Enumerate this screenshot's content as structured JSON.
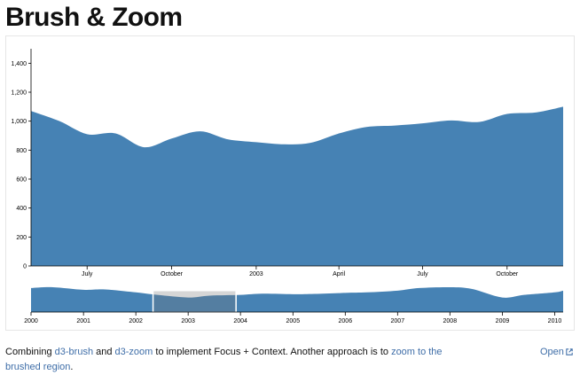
{
  "page": {
    "title": "Brush & Zoom"
  },
  "chart_data": [
    {
      "type": "area",
      "name": "focus",
      "color": "#4682b4",
      "ylim": [
        0,
        1500
      ],
      "y_ticks": [
        0,
        200,
        400,
        600,
        800,
        1000,
        1200,
        1400
      ],
      "y_tick_labels": [
        "0",
        "200",
        "400",
        "600",
        "800",
        "1,000",
        "1,200",
        "1,400"
      ],
      "x_range": [
        "2002-05-01",
        "2003-12-01"
      ],
      "x_ticks": [
        {
          "x": "2002-07-01",
          "label": "July"
        },
        {
          "x": "2002-10-01",
          "label": "October"
        },
        {
          "x": "2003-01-01",
          "label": "2003"
        },
        {
          "x": "2003-04-01",
          "label": "April"
        },
        {
          "x": "2003-07-01",
          "label": "July"
        },
        {
          "x": "2003-10-01",
          "label": "October"
        }
      ],
      "x": [
        "2002-05-01",
        "2002-06-01",
        "2002-07-01",
        "2002-08-01",
        "2002-09-01",
        "2002-10-01",
        "2002-11-01",
        "2002-12-01",
        "2003-01-01",
        "2003-02-01",
        "2003-03-01",
        "2003-04-01",
        "2003-05-01",
        "2003-06-01",
        "2003-07-01",
        "2003-08-01",
        "2003-09-01",
        "2003-10-01",
        "2003-11-01",
        "2003-12-01"
      ],
      "y": [
        1070,
        1000,
        910,
        915,
        820,
        880,
        930,
        875,
        855,
        840,
        850,
        915,
        960,
        970,
        985,
        1005,
        995,
        1050,
        1060,
        1100
      ]
    },
    {
      "type": "area",
      "name": "context",
      "color": "#4682b4",
      "x_range": [
        "2000-01-01",
        "2010-03-01"
      ],
      "x_ticks": [
        {
          "x": "2000-01-01",
          "label": "2000"
        },
        {
          "x": "2001-01-01",
          "label": "2001"
        },
        {
          "x": "2002-01-01",
          "label": "2002"
        },
        {
          "x": "2003-01-01",
          "label": "2003"
        },
        {
          "x": "2004-01-01",
          "label": "2004"
        },
        {
          "x": "2005-01-01",
          "label": "2005"
        },
        {
          "x": "2006-01-01",
          "label": "2006"
        },
        {
          "x": "2007-01-01",
          "label": "2007"
        },
        {
          "x": "2008-01-01",
          "label": "2008"
        },
        {
          "x": "2009-01-01",
          "label": "2009"
        },
        {
          "x": "2010-01-01",
          "label": "2010"
        }
      ],
      "x": [
        "2000-01-01",
        "2000-06-01",
        "2001-01-01",
        "2001-06-01",
        "2002-01-01",
        "2002-06-01",
        "2003-01-01",
        "2003-06-01",
        "2004-01-01",
        "2004-06-01",
        "2005-01-01",
        "2005-06-01",
        "2006-01-01",
        "2006-06-01",
        "2007-01-01",
        "2007-06-01",
        "2008-01-01",
        "2008-06-01",
        "2009-01-01",
        "2009-06-01",
        "2010-01-01",
        "2010-03-01"
      ],
      "y": [
        1400,
        1450,
        1300,
        1320,
        1150,
        1000,
        850,
        960,
        1000,
        1070,
        1040,
        1060,
        1120,
        1150,
        1250,
        1400,
        1450,
        1350,
        850,
        1000,
        1150,
        1250
      ],
      "brush": [
        "2002-05-01",
        "2003-12-01"
      ]
    }
  ],
  "caption": {
    "prefix": "Combining ",
    "link1": "d3-brush",
    "and": " and ",
    "link2": "d3-zoom",
    "middle": " to implement Focus + Context. Another approach is to ",
    "link3": "zoom to the brushed region",
    "suffix": "."
  },
  "open_link": {
    "label": "Open",
    "icon": "external-link-icon"
  }
}
